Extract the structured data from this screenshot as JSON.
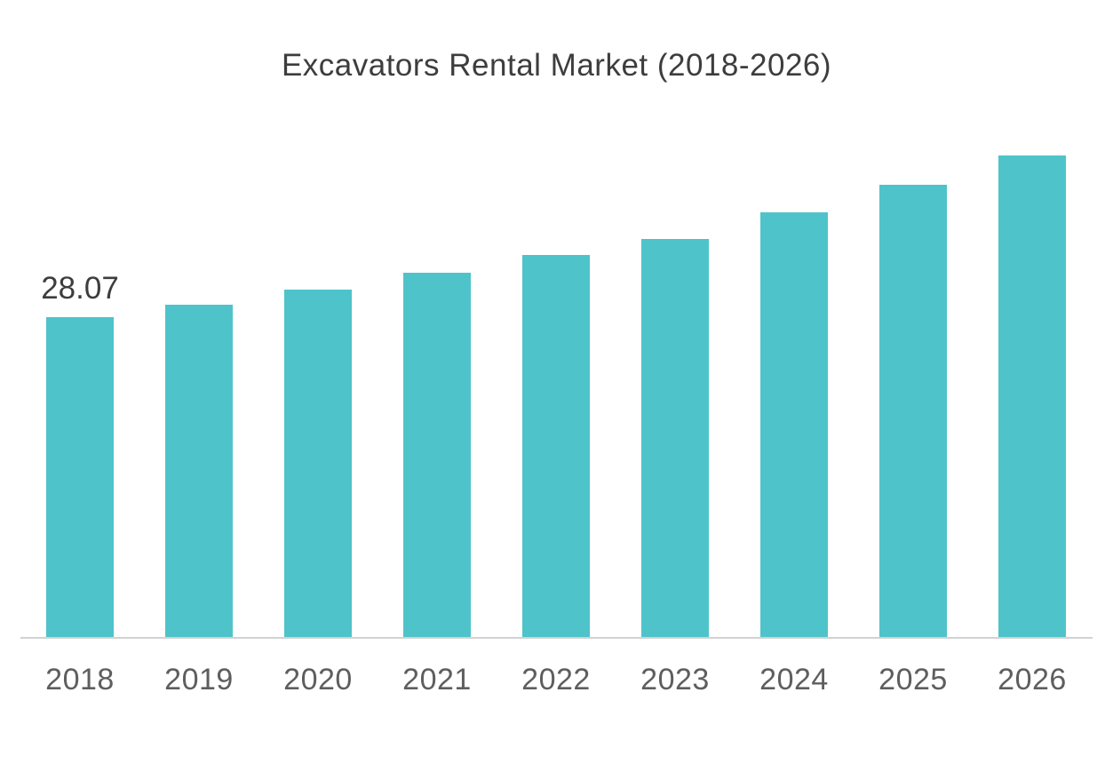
{
  "chart_data": {
    "type": "bar",
    "title": "Excavators Rental Market (2018-2026)",
    "categories": [
      "2018",
      "2019",
      "2020",
      "2021",
      "2022",
      "2023",
      "2024",
      "2025",
      "2026"
    ],
    "values": [
      28.07,
      29.2,
      30.5,
      32.0,
      33.5,
      34.9,
      37.3,
      39.7,
      42.3
    ],
    "data_labels": [
      {
        "category": "2018",
        "text": "28.07"
      }
    ],
    "xlabel": "",
    "ylabel": "",
    "ylim": [
      0,
      45
    ],
    "grid": false,
    "legend": false,
    "y_axis_visible": false,
    "layout_hints": {
      "orientation": "vertical",
      "single_series": true,
      "only_first_bar_labeled": true
    },
    "colors": {
      "bar": "#4FC3CA",
      "title_text": "#3D3D3D",
      "tick_text": "#5E5E5E",
      "axis_line": "#D2D2D2",
      "data_label_text": "#3D3D3D",
      "background": "#FFFFFF"
    }
  }
}
